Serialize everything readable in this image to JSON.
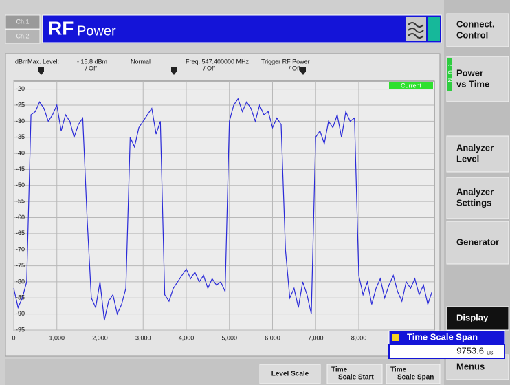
{
  "header": {
    "channels": [
      "Ch.1",
      "Ch.2"
    ],
    "title_main": "RF",
    "title_sub": "Power"
  },
  "status": [
    "dBm",
    "Max. Level:",
    "- 15.8 dBm",
    "/ Off",
    "Normal",
    "Freq. 547.400000 MHz",
    "/ Off",
    "Trigger RF Power",
    "/ Off"
  ],
  "softkeys": [
    [
      "Connect.",
      "Control"
    ],
    [
      "Power",
      "vs Time"
    ],
    [
      "Analyzer",
      "Level"
    ],
    [
      "Analyzer",
      "Settings"
    ],
    [
      "Generator"
    ],
    [
      "Display"
    ],
    [
      "Menus"
    ]
  ],
  "run_label": "RUN",
  "bottom_keys": [
    [
      "Level Scale"
    ],
    [
      "Time",
      "Scale Start"
    ],
    [
      "Time",
      "Scale Span"
    ]
  ],
  "popup": {
    "title": "Time Scale Span",
    "value": "9753.6",
    "unit": "us"
  },
  "chart_data": {
    "type": "line",
    "badge": "Current",
    "grid": true,
    "x": [
      0,
      100,
      200,
      300,
      400,
      500,
      600,
      700,
      800,
      900,
      1000,
      1100,
      1200,
      1300,
      1400,
      1500,
      1600,
      1700,
      1800,
      1900,
      2000,
      2100,
      2200,
      2300,
      2400,
      2500,
      2600,
      2700,
      2800,
      2900,
      3000,
      3100,
      3200,
      3300,
      3400,
      3500,
      3600,
      3700,
      3800,
      3900,
      4000,
      4100,
      4200,
      4300,
      4400,
      4500,
      4600,
      4700,
      4800,
      4900,
      5000,
      5100,
      5200,
      5300,
      5400,
      5500,
      5600,
      5700,
      5800,
      5900,
      6000,
      6100,
      6200,
      6300,
      6400,
      6500,
      6600,
      6700,
      6800,
      6900,
      7000,
      7100,
      7200,
      7300,
      7400,
      7500,
      7600,
      7700,
      7800,
      7900,
      8000,
      8100,
      8200,
      8300,
      8400,
      8500,
      8600,
      8700,
      8800,
      8900,
      9000,
      9100,
      9200,
      9300,
      9400,
      9500,
      9600,
      9700
    ],
    "series": [
      {
        "color": "#2a2ad8",
        "values": [
          -82,
          -88,
          -85,
          -80,
          -28,
          -27,
          -24,
          -26,
          -30,
          -28,
          -25,
          -33,
          -28,
          -30,
          -35,
          -31,
          -29,
          -60,
          -85,
          -88,
          -80,
          -92,
          -86,
          -84,
          -90,
          -87,
          -82,
          -35,
          -38,
          -32,
          -30,
          -28,
          -26,
          -34,
          -30,
          -84,
          -86,
          -82,
          -80,
          -78,
          -76,
          -79,
          -77,
          -80,
          -78,
          -82,
          -79,
          -81,
          -80,
          -83,
          -30,
          -25,
          -23,
          -27,
          -24,
          -26,
          -30,
          -25,
          -28,
          -27,
          -32,
          -29,
          -31,
          -70,
          -85,
          -82,
          -88,
          -80,
          -84,
          -90,
          -35,
          -33,
          -37,
          -30,
          -32,
          -28,
          -35,
          -27,
          -30,
          -29,
          -78,
          -84,
          -80,
          -87,
          -82,
          -79,
          -85,
          -81,
          -78,
          -83,
          -86,
          -80,
          -82,
          -79,
          -84,
          -81,
          -87,
          -83
        ]
      }
    ],
    "xlim": [
      0,
      9753.6
    ],
    "ylim": [
      -95,
      -17.5
    ],
    "xticks": [
      0,
      {
        "value": 1000,
        "label": "1,000"
      },
      {
        "value": 2000,
        "label": "2,000"
      },
      {
        "value": 3000,
        "label": "3,000"
      },
      {
        "value": 4000,
        "label": "4,000"
      },
      {
        "value": 5000,
        "label": "5,000"
      },
      {
        "value": 6000,
        "label": "6,000"
      },
      {
        "value": 7000,
        "label": "7,000"
      },
      {
        "value": 8000,
        "label": "8,000"
      }
    ],
    "yticks": [
      -20,
      -25,
      -30,
      -35,
      -40,
      -45,
      -50,
      -55,
      -60,
      -65,
      -70,
      -75,
      -80,
      -85,
      -90,
      -95
    ]
  }
}
